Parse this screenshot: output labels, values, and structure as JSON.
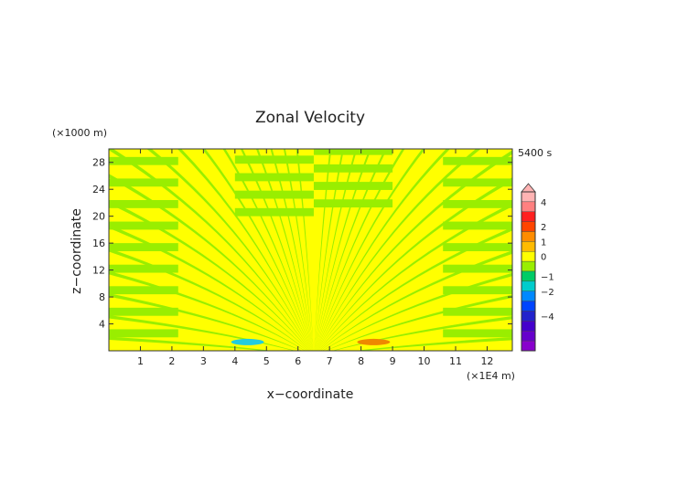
{
  "chart_data": {
    "type": "heatmap",
    "title": "Zonal Velocity",
    "xlabel": "x−coordinate",
    "ylabel": "z−coordinate",
    "x_unit": "(×1E4 m)",
    "y_unit": "(×1000 m)",
    "time_label": "5400 s",
    "xlim": [
      0,
      12.8
    ],
    "ylim": [
      0,
      30
    ],
    "x_ticks": [
      "1",
      "2",
      "3",
      "4",
      "5",
      "6",
      "7",
      "8",
      "9",
      "10",
      "11",
      "12"
    ],
    "y_ticks": [
      "4",
      "8",
      "12",
      "16",
      "20",
      "24",
      "28"
    ],
    "field_pattern": {
      "background_value_band": "0 to 0.5",
      "alternating_band_color": "#99ee00",
      "background_color": "#ffff00",
      "center_x": 6.5,
      "notes": "radiating alternating bands of weak positive/negative velocity symmetric about x=6.5"
    },
    "extrema": [
      {
        "x": 4.4,
        "z": 1.3,
        "sign": "negative",
        "color": "#22ccdd"
      },
      {
        "x": 8.4,
        "z": 1.3,
        "sign": "positive",
        "color": "#ee8800"
      }
    ],
    "colorbar": {
      "ticks": [
        "4",
        "2",
        "1",
        "0",
        "−1",
        "−2",
        "−4"
      ],
      "levels": [
        {
          "color": "#ffb3b3"
        },
        {
          "color": "#ff8080"
        },
        {
          "color": "#ff2020"
        },
        {
          "color": "#ff4400"
        },
        {
          "color": "#ff8c00"
        },
        {
          "color": "#ffbb00"
        },
        {
          "color": "#ffff00"
        },
        {
          "color": "#99ee00"
        },
        {
          "color": "#00cc66"
        },
        {
          "color": "#00cccc"
        },
        {
          "color": "#0088ff"
        },
        {
          "color": "#0044ff"
        },
        {
          "color": "#2222cc"
        },
        {
          "color": "#4400cc"
        },
        {
          "color": "#6600cc"
        },
        {
          "color": "#8800cc"
        }
      ]
    }
  }
}
